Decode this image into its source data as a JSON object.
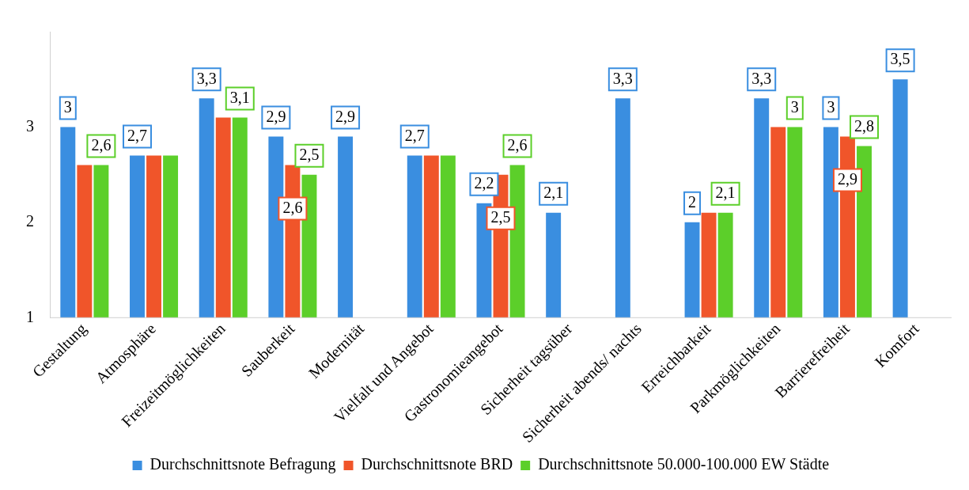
{
  "chart_data": {
    "type": "bar",
    "categories": [
      "Gestaltung",
      "Atmosphäre",
      "Freizeitmöglichkeiten",
      "Sauberkeit",
      "Modernität",
      "Vielfalt und Angebot",
      "Gastronomieangebot",
      "Sicherheit tagsüber",
      "Sicherheit abends/ nachts",
      "Erreichbarkeit",
      "Parkmöglichkeiten",
      "Barrierefreiheit",
      "Komfort"
    ],
    "series": [
      {
        "name": "Durchschnittsnote Befragung",
        "color": "#3a8ee0",
        "values": [
          3,
          2.7,
          3.3,
          2.9,
          2.9,
          2.7,
          2.2,
          2.1,
          3.3,
          2,
          3.3,
          3,
          3.5
        ],
        "value_labels": [
          "3",
          "2,7",
          "3,3",
          "2,9",
          "2,9",
          "2,7",
          "2,2",
          "2,1",
          "3,3",
          "2",
          "3,3",
          "3",
          "3,5"
        ]
      },
      {
        "name": "Durchschnittsnote BRD",
        "color": "#f0552a",
        "values": [
          2.6,
          2.7,
          3.1,
          2.6,
          null,
          2.7,
          2.5,
          null,
          null,
          2.1,
          3,
          2.9,
          null
        ],
        "value_labels": [
          null,
          null,
          null,
          "2,6",
          null,
          null,
          "2,5",
          null,
          null,
          null,
          null,
          "2,9",
          null
        ]
      },
      {
        "name": "Durchschnittsnote 50.000-100.000 EW Städte",
        "color": "#5ccf2a",
        "values": [
          2.6,
          2.7,
          3.1,
          2.5,
          null,
          2.7,
          2.6,
          null,
          null,
          2.1,
          3,
          2.8,
          null
        ],
        "value_labels": [
          "2,6",
          null,
          "3,1",
          "2,5",
          null,
          null,
          "2,6",
          null,
          null,
          "2,1",
          "3",
          "2,8",
          null
        ]
      }
    ],
    "ylim": [
      1,
      4
    ],
    "yticks": [
      1,
      2,
      3
    ],
    "grid": false,
    "legend": "bottom"
  }
}
